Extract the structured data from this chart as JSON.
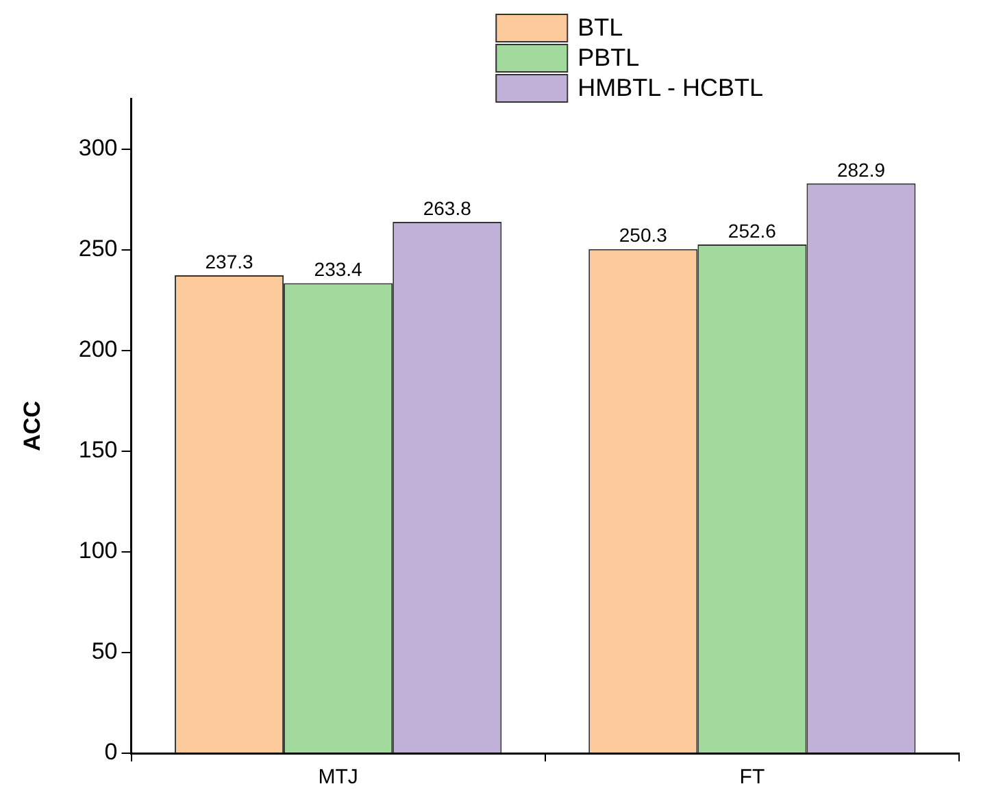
{
  "chart_data": {
    "type": "bar",
    "ylabel": "ACC",
    "categories": [
      "MTJ",
      "FT"
    ],
    "series": [
      {
        "name": "BTL",
        "color": "#fdca9c",
        "values": [
          237.3,
          250.3
        ]
      },
      {
        "name": "PBTL",
        "color": "#a2d99c",
        "values": [
          233.4,
          252.6
        ]
      },
      {
        "name": "HMBTL - HCBTL",
        "color": "#c1b1d8",
        "values": [
          263.8,
          282.9
        ]
      }
    ],
    "ylim": [
      0,
      325
    ],
    "yticks": [
      0,
      50,
      100,
      150,
      200,
      250,
      300
    ],
    "grid": false,
    "legend": "top",
    "data_labels": true
  }
}
